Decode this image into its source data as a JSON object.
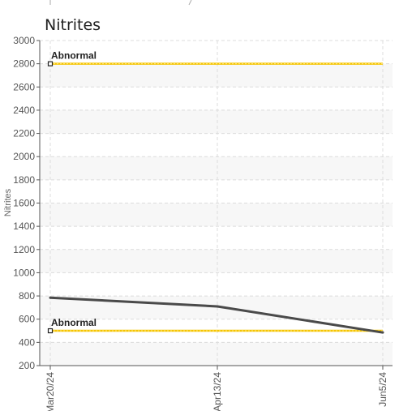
{
  "chart_data": {
    "type": "line",
    "title": "Nitrites",
    "ylabel": "Nitrites",
    "xlabel": "",
    "ylim": [
      200,
      3000
    ],
    "yticks": [
      200,
      400,
      600,
      800,
      1000,
      1200,
      1400,
      1600,
      1800,
      2000,
      2200,
      2400,
      2600,
      2800,
      3000
    ],
    "x": [
      "Mar20/24",
      "Apr13/24",
      "Jun5/24"
    ],
    "series": [
      {
        "values": [
          785,
          710,
          485
        ],
        "color": "#4a4a4a"
      }
    ],
    "reference_lines": [
      {
        "label": "Abnormal",
        "value": 2800,
        "color": "#f5c400"
      },
      {
        "label": "Abnormal",
        "value": 500,
        "color": "#f5c400"
      }
    ],
    "grid": true,
    "legend": "none"
  }
}
